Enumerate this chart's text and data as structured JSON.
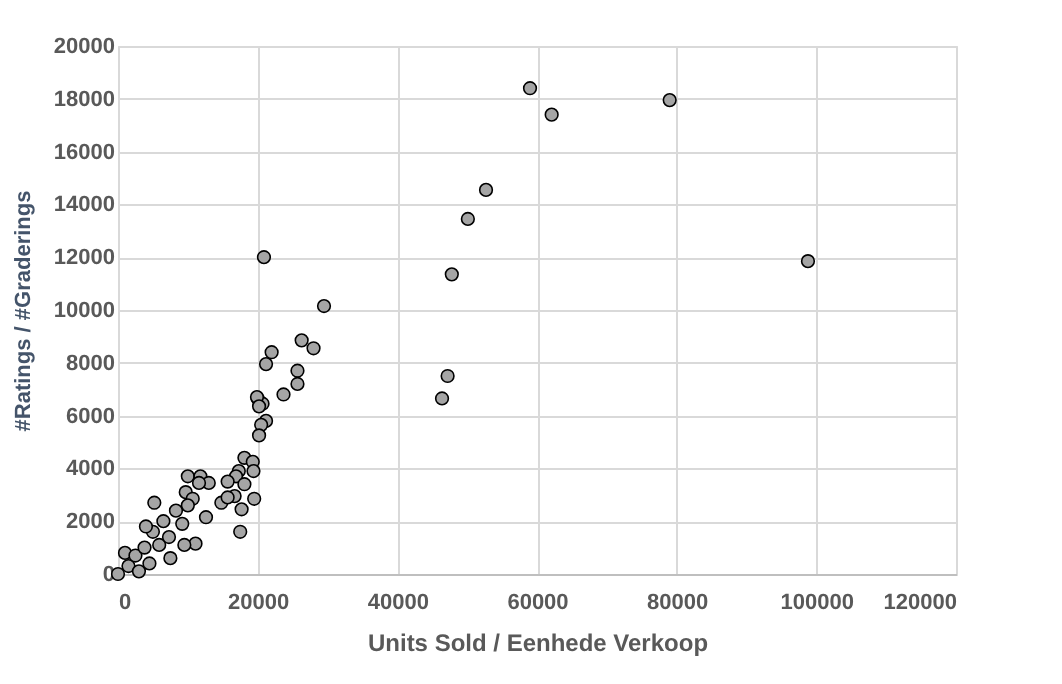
{
  "chart_data": {
    "type": "scatter",
    "xlabel": "Units Sold / Eenhede Verkoop",
    "ylabel": "#Ratings / #Graderings",
    "xlim": [
      0,
      120000
    ],
    "ylim": [
      0,
      20000
    ],
    "xticks": [
      0,
      20000,
      40000,
      60000,
      80000,
      100000,
      120000
    ],
    "yticks": [
      0,
      2000,
      4000,
      6000,
      8000,
      10000,
      12000,
      14000,
      16000,
      18000,
      20000
    ],
    "grid": true,
    "marker": "circle",
    "series": [
      {
        "color": "#a5a5a5",
        "x": [
          59000,
          62100,
          79000,
          98800,
          52700,
          50100,
          47800,
          20900,
          29500,
          26300,
          28000,
          22000,
          21200,
          25700,
          25700,
          23700,
          47200,
          46400,
          20000,
          20700,
          19900,
          20200,
          21200,
          20500,
          20200,
          18100,
          19300,
          19400,
          17300,
          16900,
          15700,
          18100,
          19500,
          17700,
          16700,
          14800,
          15700,
          17500,
          12600,
          11100,
          5200,
          10000,
          11800,
          13000,
          9700,
          10700,
          11600,
          0,
          1000,
          1500,
          2500,
          3000,
          3800,
          4500,
          5000,
          5900,
          6500,
          7300,
          7500,
          8300,
          9200,
          9500,
          10000,
          4000
        ],
        "values": [
          18400,
          17400,
          17950,
          11850,
          14550,
          13450,
          11350,
          12000,
          10150,
          8850,
          8550,
          8400,
          7950,
          7700,
          7200,
          6800,
          7500,
          6650,
          6650,
          6450,
          6700,
          6350,
          5800,
          5650,
          5250,
          4400,
          4250,
          3900,
          3900,
          3700,
          3500,
          3400,
          2850,
          2450,
          2950,
          2700,
          2900,
          1600,
          2150,
          1150,
          2700,
          3700,
          3700,
          3450,
          3100,
          2850,
          3450,
          0,
          800,
          300,
          700,
          100,
          1000,
          400,
          1600,
          1100,
          2000,
          1400,
          600,
          2400,
          1900,
          1100,
          2600,
          1800
        ]
      }
    ]
  }
}
